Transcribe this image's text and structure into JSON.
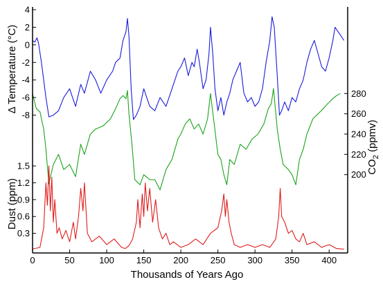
{
  "chart_data": {
    "type": "line",
    "xlabel": "Thousands of Years Ago",
    "xlim": [
      0,
      425
    ],
    "xticks": [
      0,
      50,
      100,
      150,
      200,
      250,
      300,
      350,
      400
    ],
    "grid": false,
    "panels": [
      {
        "name": "temperature",
        "ylabel": "Δ Temperature (°C)",
        "yaxis_side": "left",
        "ylim": [
          -10,
          4
        ],
        "yticks": [
          4,
          2,
          0,
          -2,
          -4,
          -6,
          -8
        ],
        "color": "#1a1adc",
        "series": {
          "x": [
            0,
            3,
            6,
            8,
            12,
            15,
            18,
            22,
            28,
            35,
            42,
            50,
            58,
            65,
            70,
            78,
            85,
            92,
            100,
            108,
            112,
            118,
            122,
            126,
            128,
            130,
            133,
            136,
            140,
            145,
            150,
            158,
            165,
            172,
            180,
            188,
            196,
            200,
            205,
            210,
            215,
            218,
            222,
            225,
            230,
            234,
            238,
            240,
            243,
            246,
            250,
            254,
            258,
            262,
            266,
            270,
            275,
            280,
            285,
            290,
            295,
            300,
            305,
            310,
            315,
            320,
            323,
            326,
            330,
            333,
            336,
            340,
            345,
            350,
            355,
            360,
            365,
            370,
            375,
            380,
            385,
            390,
            395,
            400,
            405,
            408,
            412,
            416,
            420
          ],
          "y": [
            0.5,
            0.3,
            0.8,
            0.2,
            -2.0,
            -4.0,
            -6.0,
            -8.2,
            -8.0,
            -7.5,
            -6.0,
            -5.0,
            -7.0,
            -4.5,
            -5.5,
            -3.0,
            -4.0,
            -5.5,
            -4.0,
            -3.0,
            -2.0,
            -1.5,
            0.5,
            1.5,
            3.0,
            1.0,
            -5.0,
            -8.5,
            -8.0,
            -7.0,
            -5.0,
            -7.0,
            -7.5,
            -6.0,
            -7.0,
            -5.0,
            -3.0,
            -2.5,
            -1.5,
            -3.5,
            -2.0,
            -2.5,
            -0.5,
            -2.0,
            -5.0,
            -4.0,
            -1.0,
            2.0,
            -1.0,
            -5.0,
            -7.5,
            -6.0,
            -8.0,
            -6.5,
            -5.5,
            -4.0,
            -3.0,
            -2.0,
            -5.5,
            -6.5,
            -6.0,
            -7.0,
            -6.5,
            -5.0,
            -2.0,
            0.5,
            3.2,
            2.0,
            -3.5,
            -8.0,
            -7.5,
            -6.5,
            -7.5,
            -6.0,
            -6.5,
            -5.0,
            -4.0,
            -2.0,
            -0.5,
            0.5,
            -1.0,
            -2.5,
            -3.0,
            -1.5,
            0.5,
            2.0,
            1.5,
            1.0,
            0.5
          ]
        }
      },
      {
        "name": "co2",
        "ylabel": "CO2 (ppmv)",
        "yaxis_side": "right",
        "ylim": [
          180,
          285
        ],
        "yticks": [
          280,
          260,
          240,
          220,
          200
        ],
        "color": "#1aa31a",
        "series": {
          "x": [
            0,
            5,
            10,
            15,
            18,
            22,
            28,
            35,
            42,
            50,
            58,
            65,
            70,
            78,
            85,
            95,
            105,
            112,
            118,
            122,
            126,
            128,
            130,
            134,
            138,
            145,
            150,
            158,
            165,
            172,
            180,
            188,
            196,
            200,
            206,
            212,
            218,
            224,
            230,
            236,
            240,
            245,
            250,
            254,
            258,
            262,
            266,
            272,
            280,
            288,
            296,
            304,
            312,
            318,
            322,
            325,
            330,
            334,
            338,
            345,
            350,
            355,
            360,
            365,
            370,
            378,
            385,
            392,
            398,
            405,
            410,
            415
          ],
          "y": [
            280,
            265,
            262,
            245,
            225,
            191,
            210,
            220,
            205,
            210,
            198,
            230,
            220,
            240,
            245,
            248,
            255,
            265,
            275,
            278,
            275,
            283,
            260,
            230,
            195,
            190,
            200,
            195,
            195,
            185,
            205,
            215,
            235,
            240,
            250,
            255,
            245,
            250,
            240,
            255,
            280,
            250,
            220,
            215,
            200,
            190,
            215,
            210,
            230,
            225,
            235,
            240,
            250,
            265,
            270,
            285,
            245,
            225,
            210,
            205,
            200,
            190,
            215,
            225,
            240,
            255,
            260,
            265,
            270,
            275,
            278,
            280
          ]
        }
      },
      {
        "name": "dust",
        "ylabel": "Dust (ppm)",
        "yaxis_side": "left",
        "ylim": [
          0,
          1.55
        ],
        "yticks": [
          1.5,
          1.2,
          0.9,
          0.6,
          0.3
        ],
        "color": "#e01b1b",
        "series": {
          "x": [
            0,
            10,
            15,
            18,
            20,
            22,
            24,
            26,
            28,
            30,
            33,
            36,
            40,
            45,
            50,
            55,
            58,
            62,
            65,
            68,
            70,
            74,
            80,
            90,
            100,
            110,
            120,
            125,
            130,
            135,
            140,
            142,
            145,
            148,
            150,
            152,
            155,
            158,
            162,
            166,
            170,
            175,
            180,
            185,
            190,
            200,
            210,
            220,
            230,
            240,
            250,
            255,
            258,
            260,
            262,
            265,
            268,
            272,
            280,
            290,
            300,
            310,
            320,
            328,
            332,
            334,
            336,
            340,
            345,
            350,
            355,
            360,
            365,
            370,
            380,
            390,
            400,
            410,
            420
          ],
          "y": [
            0.02,
            0.05,
            0.4,
            1.2,
            0.8,
            1.5,
            0.7,
            1.3,
            0.5,
            0.9,
            0.3,
            0.4,
            0.2,
            0.35,
            0.15,
            0.5,
            0.2,
            0.6,
            1.1,
            0.7,
            1.2,
            0.3,
            0.15,
            0.25,
            0.1,
            0.2,
            0.05,
            0.03,
            0.08,
            0.2,
            0.5,
            0.9,
            0.4,
            1.0,
            0.6,
            1.2,
            0.7,
            1.1,
            0.5,
            0.9,
            0.4,
            0.2,
            0.3,
            0.1,
            0.15,
            0.05,
            0.1,
            0.2,
            0.1,
            0.3,
            0.4,
            0.7,
            1.0,
            0.6,
            0.9,
            0.5,
            0.3,
            0.1,
            0.05,
            0.1,
            0.05,
            0.1,
            0.05,
            0.2,
            0.6,
            1.1,
            0.6,
            0.5,
            0.3,
            0.35,
            0.2,
            0.15,
            0.3,
            0.1,
            0.15,
            0.05,
            0.1,
            0.03,
            0.02
          ]
        }
      }
    ]
  }
}
